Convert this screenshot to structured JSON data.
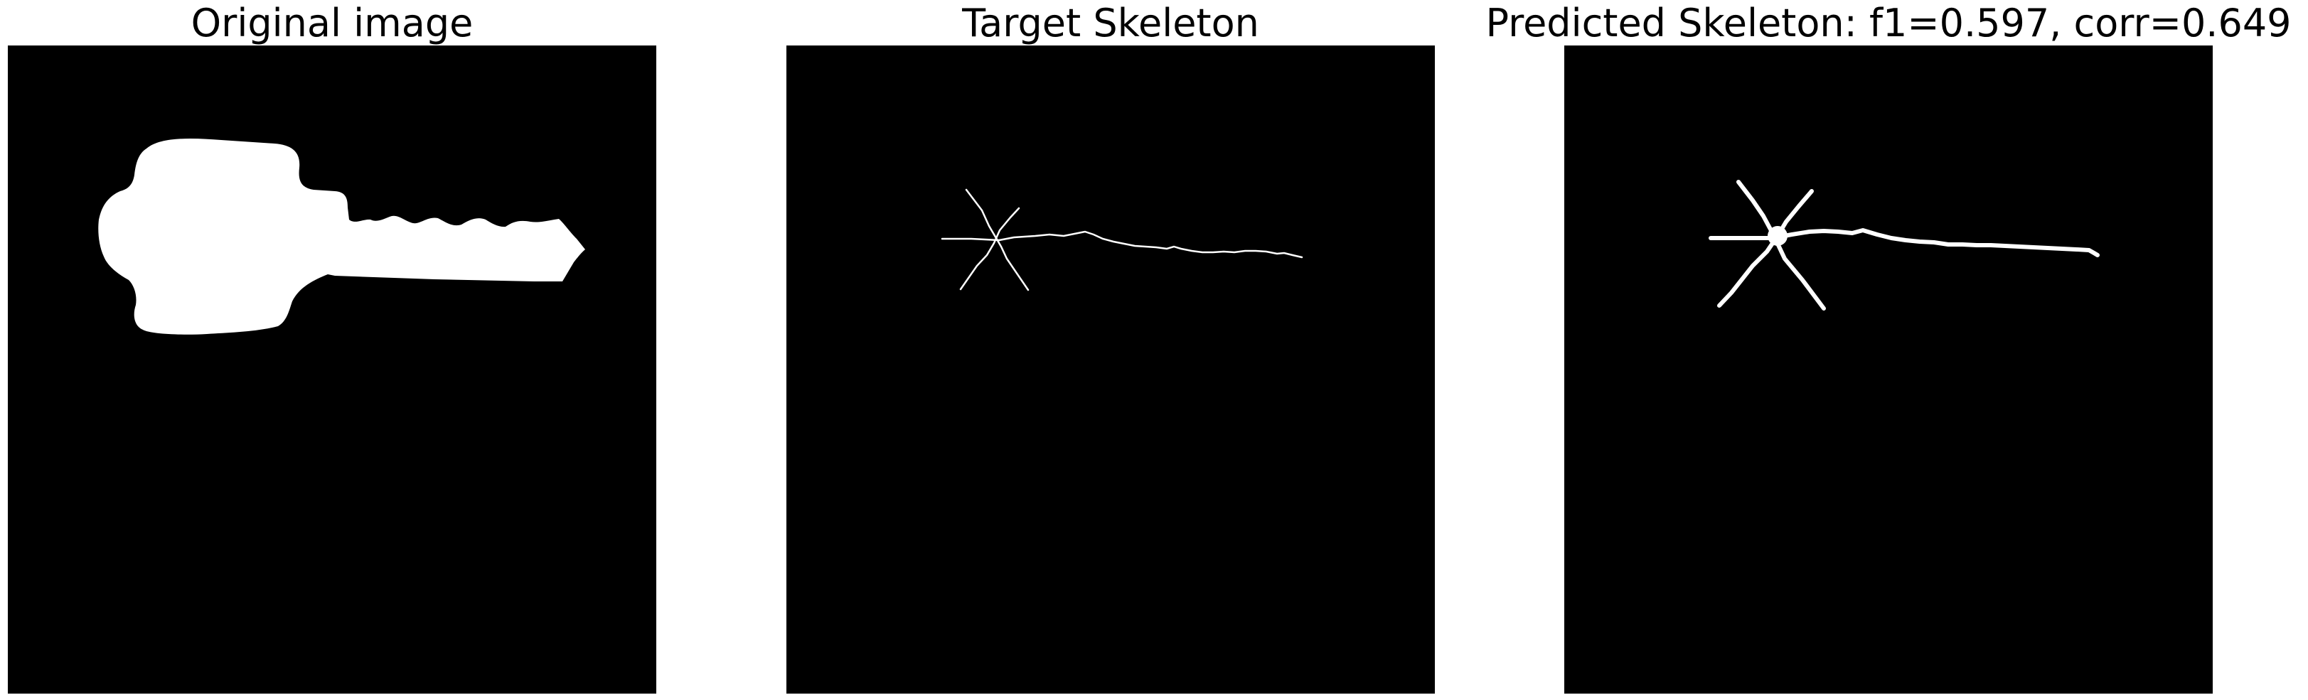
{
  "figure": {
    "background_color": "#ffffff",
    "image_background_color": "#000000",
    "foreground_color": "#ffffff"
  },
  "panels": [
    {
      "id": "original",
      "title": "Original image",
      "content": "key silhouette (white on black)"
    },
    {
      "id": "target",
      "title": "Target Skeleton",
      "content": "thin skeleton lines of key"
    },
    {
      "id": "predicted",
      "title": "Predicted Skeleton: f1=0.597, corr=0.649",
      "content": "thicker predicted skeleton lines of key"
    }
  ]
}
